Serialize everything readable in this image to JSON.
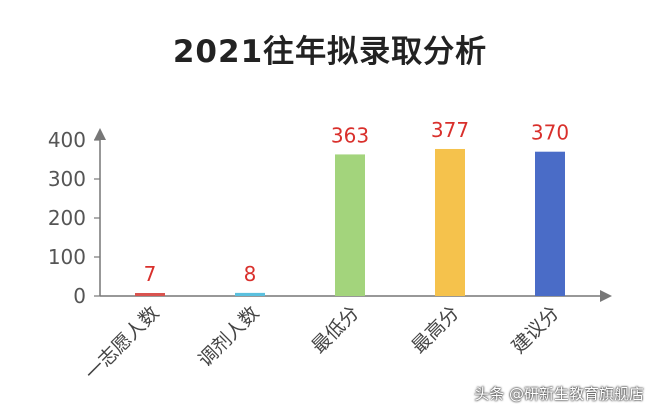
{
  "chart_data": {
    "type": "bar",
    "title": "2021往年拟录取分析",
    "categories": [
      "一志愿人数",
      "调剂人数",
      "最低分",
      "最高分",
      "建议分"
    ],
    "values": [
      7,
      8,
      363,
      377,
      370
    ],
    "data_labels": [
      "7",
      "8",
      "363",
      "377",
      "370"
    ],
    "colors": [
      "#d9534f",
      "#5bc0de",
      "#a3d47c",
      "#f5c24c",
      "#4a6cc7"
    ],
    "label_color": "#d9302c",
    "yticks": [
      "0",
      "100",
      "200",
      "300",
      "400"
    ],
    "ytick_values": [
      0,
      100,
      200,
      300,
      400
    ],
    "ylim": [
      0,
      400
    ],
    "grid": false,
    "legend": "none"
  },
  "watermark": "头条 @研新生教育旗舰店"
}
